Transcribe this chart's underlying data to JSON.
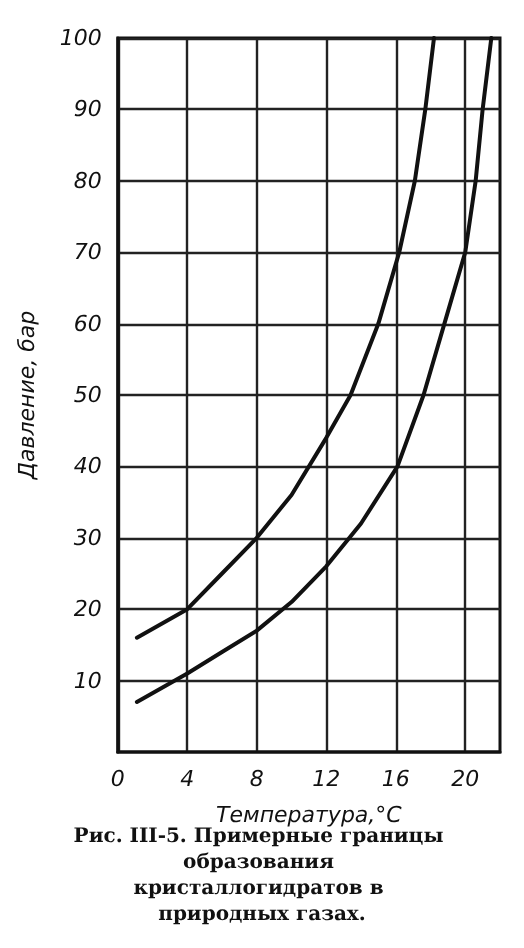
{
  "chart_data": {
    "type": "line",
    "xlabel": "Температура,°С",
    "ylabel": "Давление, бар",
    "annotations": [
      "Рис. III-5. Примерные границы образования кристаллогидратов в природных газах."
    ],
    "series": [
      {
        "color": "#111111",
        "x": [
          1.1,
          4,
          6,
          8,
          10,
          12,
          13.4,
          15,
          16.2,
          17.1,
          17.7,
          18.2
        ],
        "values": [
          16,
          20,
          25,
          30,
          36,
          44,
          50,
          60,
          70,
          80,
          90,
          100
        ]
      },
      {
        "color": "#111111",
        "x": [
          1.1,
          4,
          6,
          8,
          10,
          12,
          14,
          16.1,
          17.6,
          18.8,
          20,
          20.6,
          21,
          21.5
        ],
        "values": [
          7,
          11,
          14,
          17,
          21,
          26,
          32,
          40,
          50,
          60,
          70,
          80,
          90,
          100
        ]
      }
    ],
    "xlim": [
      0,
      22
    ],
    "xticks": [
      0,
      4,
      8,
      12,
      16,
      20
    ],
    "ylim": [
      0,
      100
    ],
    "yticks": [
      10,
      20,
      30,
      40,
      50,
      60,
      70,
      80,
      90,
      100
    ],
    "grid": true,
    "marker": "none",
    "line_style": "solid"
  }
}
